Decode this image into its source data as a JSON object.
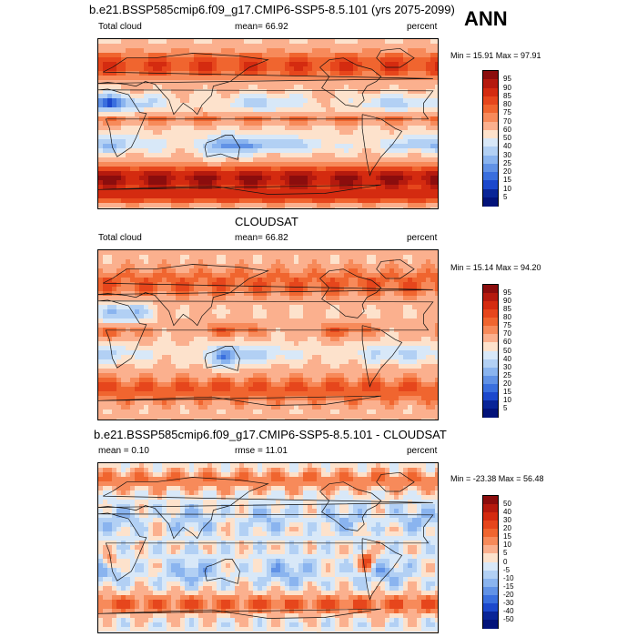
{
  "season": "ANN",
  "panels": [
    {
      "title": "b.e21.BSSP585cmip6.f09_g17.CMIP6-SSP5-8.5.101 (yrs 2075-2099)",
      "left_label": "Total cloud",
      "center_label": "mean=  66.92",
      "right_label": "percent",
      "minmax": "Min =  15.91 Max =  97.91",
      "colorbar_labels": [
        "95",
        "90",
        "85",
        "80",
        "75",
        "70",
        "60",
        "50",
        "40",
        "30",
        "25",
        "20",
        "15",
        "10",
        "5"
      ],
      "colorbar_colors": [
        "#8b0d0d",
        "#b51a0e",
        "#d42b10",
        "#e6461c",
        "#f0652f",
        "#f78a5a",
        "#fbb08e",
        "#fde2cc",
        "#d8e8f8",
        "#b2d0f4",
        "#8ab4ef",
        "#6192e6",
        "#3a6fde",
        "#1c48cc",
        "#0a2597",
        "#03137a"
      ],
      "field": "model"
    },
    {
      "title": "CLOUDSAT",
      "left_label": "Total cloud",
      "center_label": "mean=  66.82",
      "right_label": "percent",
      "minmax": "Min =  15.14 Max =  94.20",
      "colorbar_labels": [
        "95",
        "90",
        "85",
        "80",
        "75",
        "70",
        "60",
        "50",
        "40",
        "30",
        "25",
        "20",
        "15",
        "10",
        "5"
      ],
      "colorbar_colors": [
        "#8b0d0d",
        "#b51a0e",
        "#d42b10",
        "#e6461c",
        "#f0652f",
        "#f78a5a",
        "#fbb08e",
        "#fde2cc",
        "#d8e8f8",
        "#b2d0f4",
        "#8ab4ef",
        "#6192e6",
        "#3a6fde",
        "#1c48cc",
        "#0a2597",
        "#03137a"
      ],
      "field": "obs"
    },
    {
      "title": "b.e21.BSSP585cmip6.f09_g17.CMIP6-SSP5-8.5.101 - CLOUDSAT",
      "left_label": "mean =   0.10",
      "center_label": "rmse =  11.01",
      "right_label": "percent",
      "minmax": "Min = -23.38 Max =  56.48",
      "colorbar_labels": [
        "50",
        "40",
        "30",
        "20",
        "15",
        "10",
        "5",
        "0",
        "-5",
        "-10",
        "-15",
        "-20",
        "-30",
        "-40",
        "-50"
      ],
      "colorbar_colors": [
        "#8b0d0d",
        "#b51a0e",
        "#d42b10",
        "#e6461c",
        "#f0652f",
        "#f78a5a",
        "#fbb08e",
        "#fde2cc",
        "#d8e8f8",
        "#b2d0f4",
        "#8ab4ef",
        "#6192e6",
        "#3a6fde",
        "#1c48cc",
        "#0a2597",
        "#03137a"
      ],
      "field": "diff"
    }
  ]
}
